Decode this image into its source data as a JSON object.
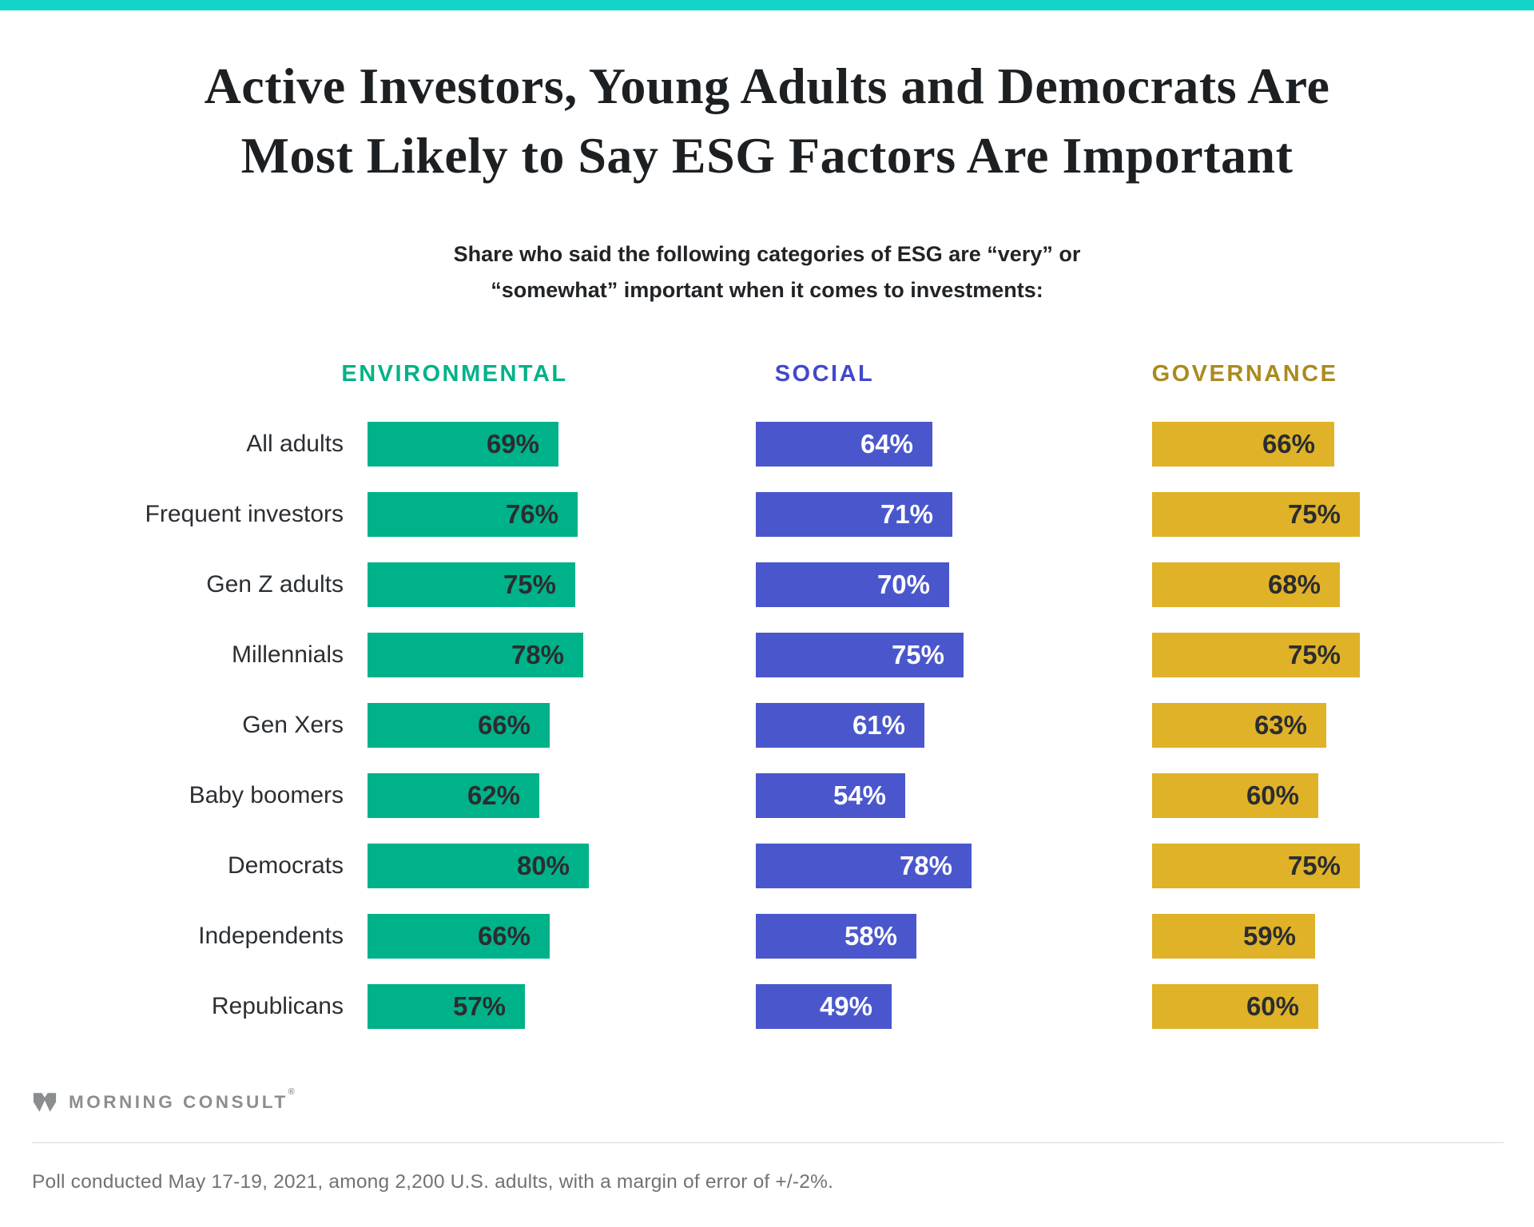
{
  "top_bar_color": "#12d5c7",
  "header": {
    "title_line1": "Active Investors, Young Adults and Democrats Are",
    "title_line2": "Most Likely to Say ESG Factors Are Important",
    "subtitle_line1": "Share who said the following categories of ESG are “very” or",
    "subtitle_line2": "“somewhat” important when it comes to investments:"
  },
  "chart_data": {
    "type": "bar",
    "orientation": "horizontal",
    "unit": "%",
    "xlim": [
      0,
      100
    ],
    "grid": false,
    "legend_position": "column-headers-top",
    "categories": [
      "All adults",
      "Frequent investors",
      "Gen Z adults",
      "Millennials",
      "Gen Xers",
      "Baby boomers",
      "Democrats",
      "Independents",
      "Republicans"
    ],
    "series": [
      {
        "name": "ENVIRONMENTAL",
        "color": "#00b289",
        "header_color": "#00b289",
        "value_label_color": "#2a2d30",
        "values": [
          69,
          76,
          75,
          78,
          66,
          62,
          80,
          66,
          57
        ]
      },
      {
        "name": "SOCIAL",
        "color": "#4a57cc",
        "header_color": "#4348cb",
        "value_label_color": "#ffffff",
        "values": [
          64,
          71,
          70,
          75,
          61,
          54,
          78,
          58,
          49
        ]
      },
      {
        "name": "GOVERNANCE",
        "color": "#e0b228",
        "header_color": "#ab8a1e",
        "value_label_color": "#2a2d30",
        "values": [
          66,
          75,
          68,
          75,
          63,
          60,
          75,
          59,
          60
        ]
      }
    ]
  },
  "footer": {
    "logo_text": "MORNING CONSULT",
    "registered_mark": "®",
    "note": "Poll conducted May 17-19, 2021, among 2,200 U.S. adults, with a margin of error of +/-2%."
  }
}
